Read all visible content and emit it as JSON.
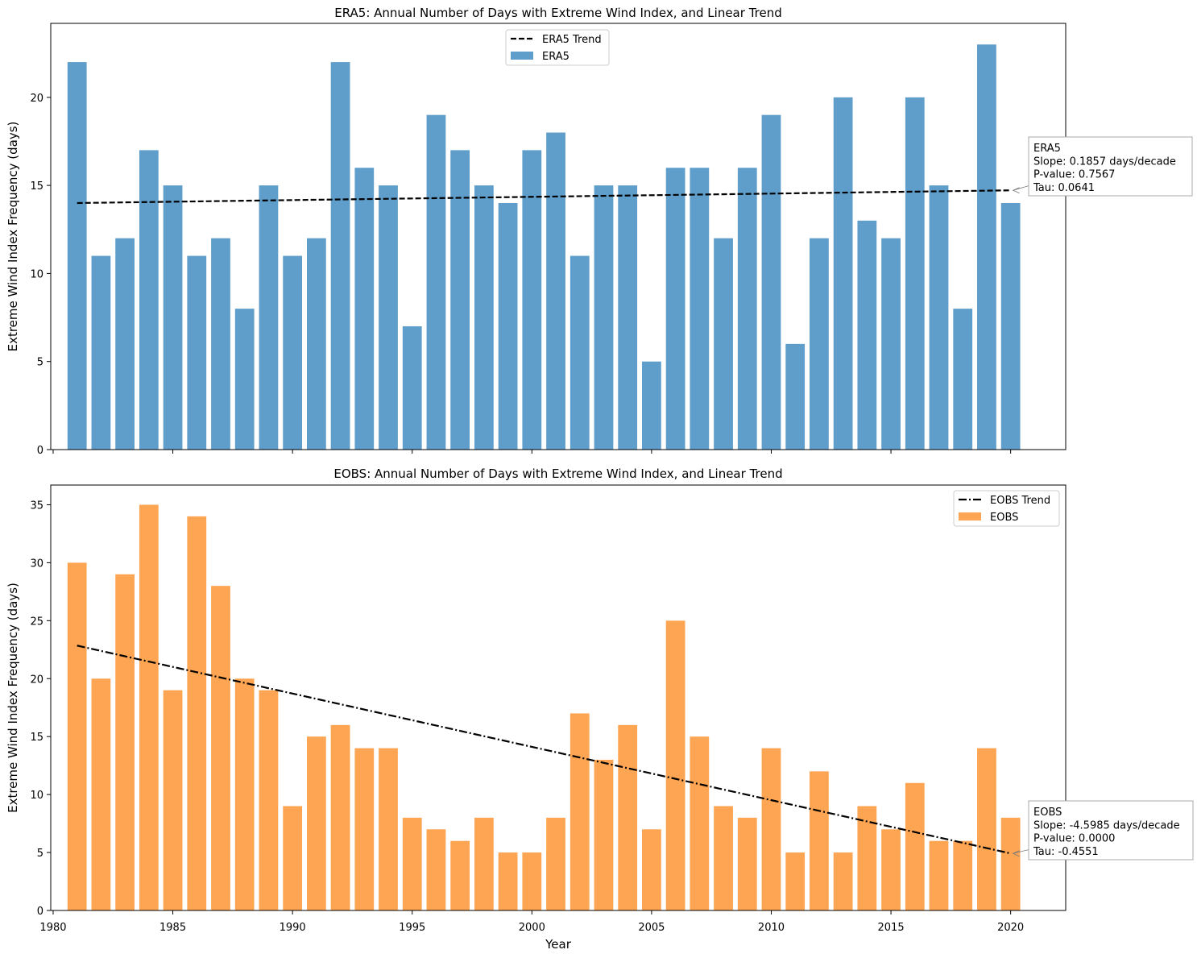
{
  "chart_data": [
    {
      "type": "bar",
      "title": "ERA5: Annual Number of Days with Extreme Wind Index, and Linear Trend",
      "xlabel": "",
      "ylabel": "Extreme Wind Index Frequency (days)",
      "xlim": [
        1979.9,
        2022.3
      ],
      "ylim": [
        0,
        24.2
      ],
      "yticks": [
        0,
        5,
        10,
        15,
        20
      ],
      "xticks": [
        1980,
        1985,
        1990,
        1995,
        2000,
        2005,
        2010,
        2015,
        2020
      ],
      "show_xtick_labels": false,
      "years": [
        1981,
        1982,
        1983,
        1984,
        1985,
        1986,
        1987,
        1988,
        1989,
        1990,
        1991,
        1992,
        1993,
        1994,
        1995,
        1996,
        1997,
        1998,
        1999,
        2000,
        2001,
        2002,
        2003,
        2004,
        2005,
        2006,
        2007,
        2008,
        2009,
        2010,
        2011,
        2012,
        2013,
        2014,
        2015,
        2016,
        2017,
        2018,
        2019,
        2020
      ],
      "values": [
        22,
        11,
        12,
        17,
        15,
        11,
        12,
        8,
        15,
        11,
        12,
        22,
        16,
        15,
        7,
        19,
        17,
        15,
        14,
        17,
        18,
        11,
        15,
        15,
        5,
        16,
        16,
        12,
        16,
        19,
        6,
        12,
        20,
        13,
        12,
        20,
        15,
        8,
        23,
        14
      ],
      "bar_color": "#5f9ecb",
      "series_name": "ERA5",
      "trend": {
        "name": "ERA5 Trend",
        "start": [
          1981,
          14.0
        ],
        "end": [
          2020,
          14.72
        ],
        "style": "dashed"
      },
      "legend_position": "upper-center",
      "annotation": [
        "ERA5",
        "Slope: 0.1857 days/decade",
        "P-value: 0.7567",
        "Tau: 0.0641"
      ]
    },
    {
      "type": "bar",
      "title": "EOBS: Annual Number of Days with Extreme Wind Index, and Linear Trend",
      "xlabel": "Year",
      "ylabel": "Extreme Wind Index Frequency (days)",
      "xlim": [
        1979.9,
        2022.3
      ],
      "ylim": [
        0,
        36.7
      ],
      "yticks": [
        0,
        5,
        10,
        15,
        20,
        25,
        30,
        35
      ],
      "xticks": [
        1980,
        1985,
        1990,
        1995,
        2000,
        2005,
        2010,
        2015,
        2020
      ],
      "show_xtick_labels": true,
      "years": [
        1981,
        1982,
        1983,
        1984,
        1985,
        1986,
        1987,
        1988,
        1989,
        1990,
        1991,
        1992,
        1993,
        1994,
        1995,
        1996,
        1997,
        1998,
        1999,
        2000,
        2001,
        2002,
        2003,
        2004,
        2005,
        2006,
        2007,
        2008,
        2009,
        2010,
        2011,
        2012,
        2013,
        2014,
        2015,
        2016,
        2017,
        2018,
        2019,
        2020
      ],
      "values": [
        30,
        20,
        29,
        35,
        19,
        34,
        28,
        20,
        19,
        9,
        15,
        16,
        14,
        14,
        8,
        7,
        6,
        8,
        5,
        5,
        8,
        17,
        13,
        16,
        7,
        25,
        15,
        9,
        8,
        14,
        5,
        12,
        5,
        9,
        7,
        11,
        6,
        6,
        14,
        8
      ],
      "bar_color": "#fea553",
      "series_name": "EOBS",
      "trend": {
        "name": "EOBS Trend",
        "start": [
          1981,
          22.85
        ],
        "end": [
          2020,
          4.92
        ],
        "style": "dashdot"
      },
      "legend_position": "upper-right",
      "annotation": [
        "EOBS",
        "Slope: -4.5985 days/decade",
        "P-value: 0.0000",
        "Tau: -0.4551"
      ]
    }
  ]
}
